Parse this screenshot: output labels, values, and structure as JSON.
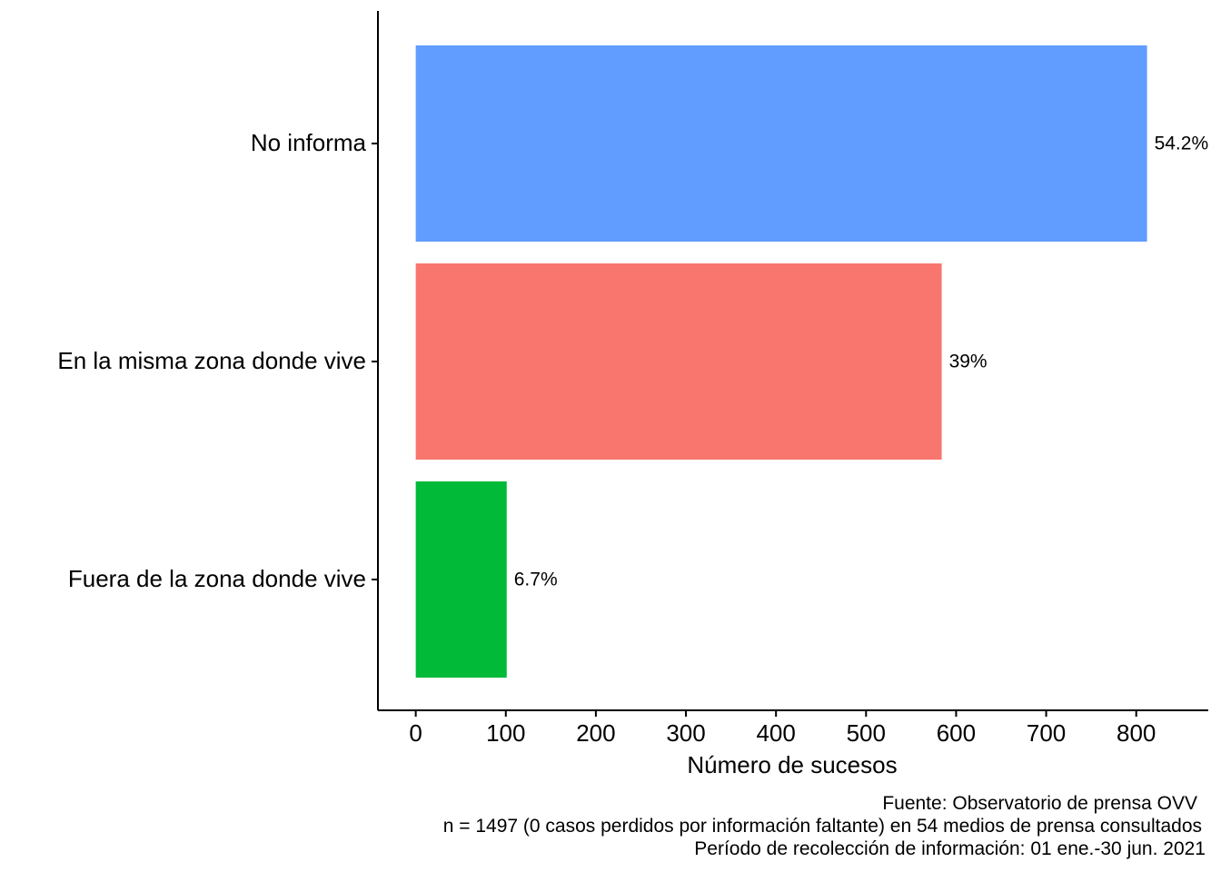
{
  "chart_data": {
    "type": "bar",
    "orientation": "horizontal",
    "categories": [
      "No informa",
      "En la misma zona donde vive",
      "Fuera de la zona donde vive"
    ],
    "values": [
      812,
      584,
      101
    ],
    "labels": [
      "54.2%",
      "39%",
      "6.7%"
    ],
    "colors": [
      "#619CFF",
      "#F8766D",
      "#00BA38"
    ],
    "xlabel": "Número de sucesos",
    "xlim": [
      -42,
      880
    ],
    "xticks": [
      0,
      100,
      200,
      300,
      400,
      500,
      600,
      700,
      800
    ],
    "grid": false,
    "legend": "none"
  },
  "caption": {
    "line1": "Fuente: Observatorio de prensa OVV",
    "line2": "n = 1497 (0 casos perdidos por información faltante) en 54 medios de prensa consultados",
    "line3": "Período de recolección de información: 01 ene.-30 jun. 2021"
  }
}
